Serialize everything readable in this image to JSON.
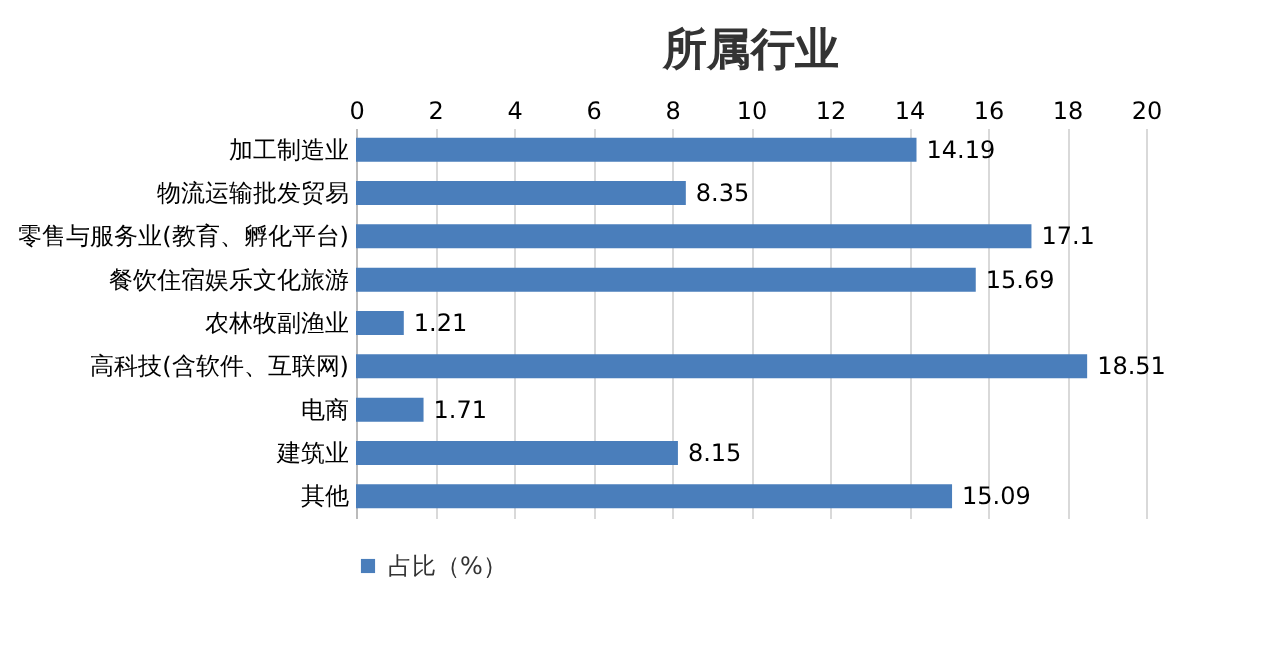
{
  "chart_data": {
    "type": "bar",
    "orientation": "horizontal",
    "title": "所属行业",
    "categories": [
      "加工制造业",
      "物流运输批发贸易",
      "零售与服务业(教育、孵化平台)",
      "餐饮住宿娱乐文化旅游",
      "农林牧副渔业",
      "高科技(含软件、互联网)",
      "电商",
      "建筑业",
      "其他"
    ],
    "series": [
      {
        "name": "占比（%）",
        "color": "#4a7ebb",
        "values": [
          14.19,
          8.35,
          17.1,
          15.69,
          1.21,
          18.51,
          1.71,
          8.15,
          15.09
        ]
      }
    ],
    "xlim": [
      0,
      20
    ],
    "xticks": [
      0,
      2,
      4,
      6,
      8,
      10,
      12,
      14,
      16,
      18,
      20
    ],
    "grid": "x",
    "legend": "bottom",
    "data_labels": true
  }
}
